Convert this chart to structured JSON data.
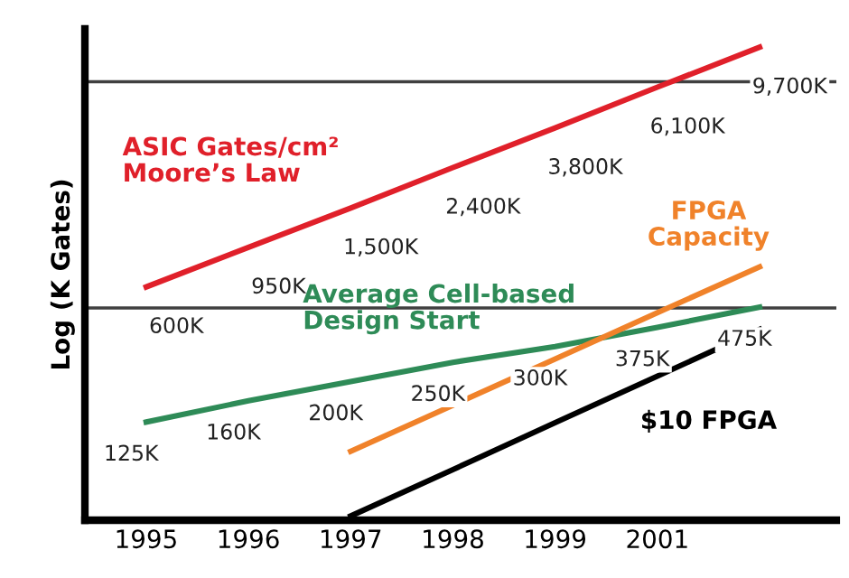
{
  "chart_data": {
    "type": "line",
    "ylabel": "Log (K Gates)",
    "log": "y",
    "ylim": [
      40,
      12000
    ],
    "categories": [
      "1995",
      "1996",
      "1997",
      "1998",
      "1999",
      "2001",
      null
    ],
    "tick_labels": "x",
    "grid": false,
    "legend": false,
    "marker": "none",
    "line_style": "solid",
    "ref_lines": [
      {
        "axis": "y",
        "value": 6500,
        "label": null,
        "color": "#404040"
      },
      {
        "axis": "y",
        "value": 470,
        "label": null,
        "color": "#404040"
      }
    ],
    "series": [
      {
        "name": "ASIC Gates/cm²\nMoore’s Law",
        "color": "#e0202a",
        "values": [
          600,
          950,
          1500,
          2400,
          3800,
          6100,
          9700
        ],
        "value_labels": [
          "600K",
          "950K",
          "1,500K",
          "2,400K",
          "3,800K",
          "6,100K",
          "9,700K"
        ]
      },
      {
        "name": "Average Cell-based\nDesign Start",
        "color": "#2e8b57",
        "values": [
          125,
          160,
          200,
          250,
          300,
          375,
          475
        ],
        "value_labels": [
          "125K",
          "160K",
          "200K",
          "250K",
          "300K",
          "375K",
          "475K"
        ]
      },
      {
        "name": "FPGA\nCapacity",
        "color": "#f0822a",
        "values": [
          null,
          null,
          89,
          152,
          260,
          445,
          758
        ]
      },
      {
        "name": "$10 FPGA",
        "color": "#000000",
        "values": [
          null,
          null,
          42,
          72,
          124,
          213,
          366
        ]
      }
    ]
  }
}
